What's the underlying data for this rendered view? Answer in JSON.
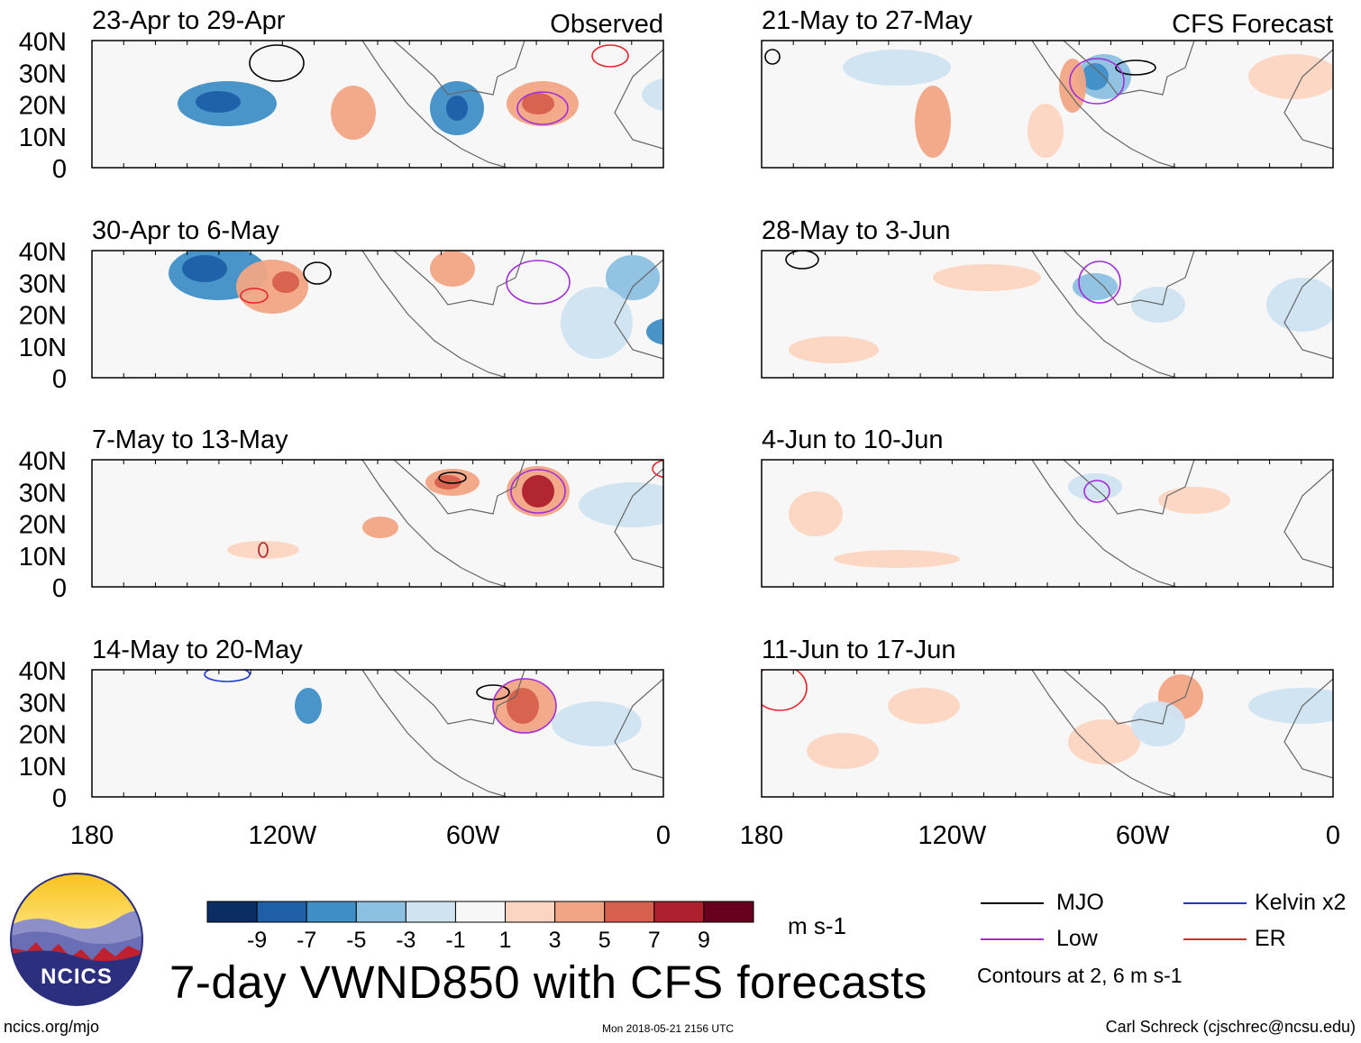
{
  "title": "7-day VWND850 with CFS forecasts",
  "columns": {
    "left_label": "Observed",
    "right_label": "CFS Forecast"
  },
  "panels": [
    {
      "title": "23-Apr to 29-Apr",
      "column": "observed",
      "row": 0
    },
    {
      "title": "30-Apr to 6-May",
      "column": "observed",
      "row": 1
    },
    {
      "title": "7-May to 13-May",
      "column": "observed",
      "row": 2
    },
    {
      "title": "14-May to 20-May",
      "column": "observed",
      "row": 3
    },
    {
      "title": "21-May to 27-May",
      "column": "forecast",
      "row": 0
    },
    {
      "title": "28-May to 3-Jun",
      "column": "forecast",
      "row": 1
    },
    {
      "title": "4-Jun to 10-Jun",
      "column": "forecast",
      "row": 2
    },
    {
      "title": "11-Jun to 17-Jun",
      "column": "forecast",
      "row": 3
    }
  ],
  "chart_data": {
    "type": "heatmap",
    "variable": "VWND850",
    "x_ticks": [
      "180",
      "120W",
      "60W",
      "0"
    ],
    "y_ticks": [
      "40N",
      "30N",
      "20N",
      "10N",
      "0"
    ],
    "x_range": [
      -180,
      0
    ],
    "y_range": [
      0,
      40
    ],
    "colorbar": {
      "ticks": [
        "-9",
        "-7",
        "-5",
        "-3",
        "-1",
        "1",
        "3",
        "5",
        "7",
        "9"
      ],
      "units": "m s-1",
      "colors": [
        "#0a2e63",
        "#1f5fa8",
        "#3f8ec6",
        "#8cc0e0",
        "#cfe3f1",
        "#f7f7f7",
        "#fbd5c1",
        "#f1a585",
        "#d6604d",
        "#ad1f2c",
        "#67001f"
      ]
    },
    "contours": {
      "legend": [
        {
          "label": "MJO",
          "color": "#000000"
        },
        {
          "label": "Kelvin x2",
          "color": "#1f36d6"
        },
        {
          "label": "Low",
          "color": "#a22fd6"
        },
        {
          "label": "ER",
          "color": "#e3262b"
        }
      ],
      "note": "Contours at 2, 6 m s-1"
    }
  },
  "logo": {
    "text": "NCICS"
  },
  "footer": {
    "url": "ncics.org/mjo",
    "timestamp": "Mon 2018-05-21 2156 UTC",
    "author": "Carl Schreck (cjschrec@ncsu.edu)"
  }
}
